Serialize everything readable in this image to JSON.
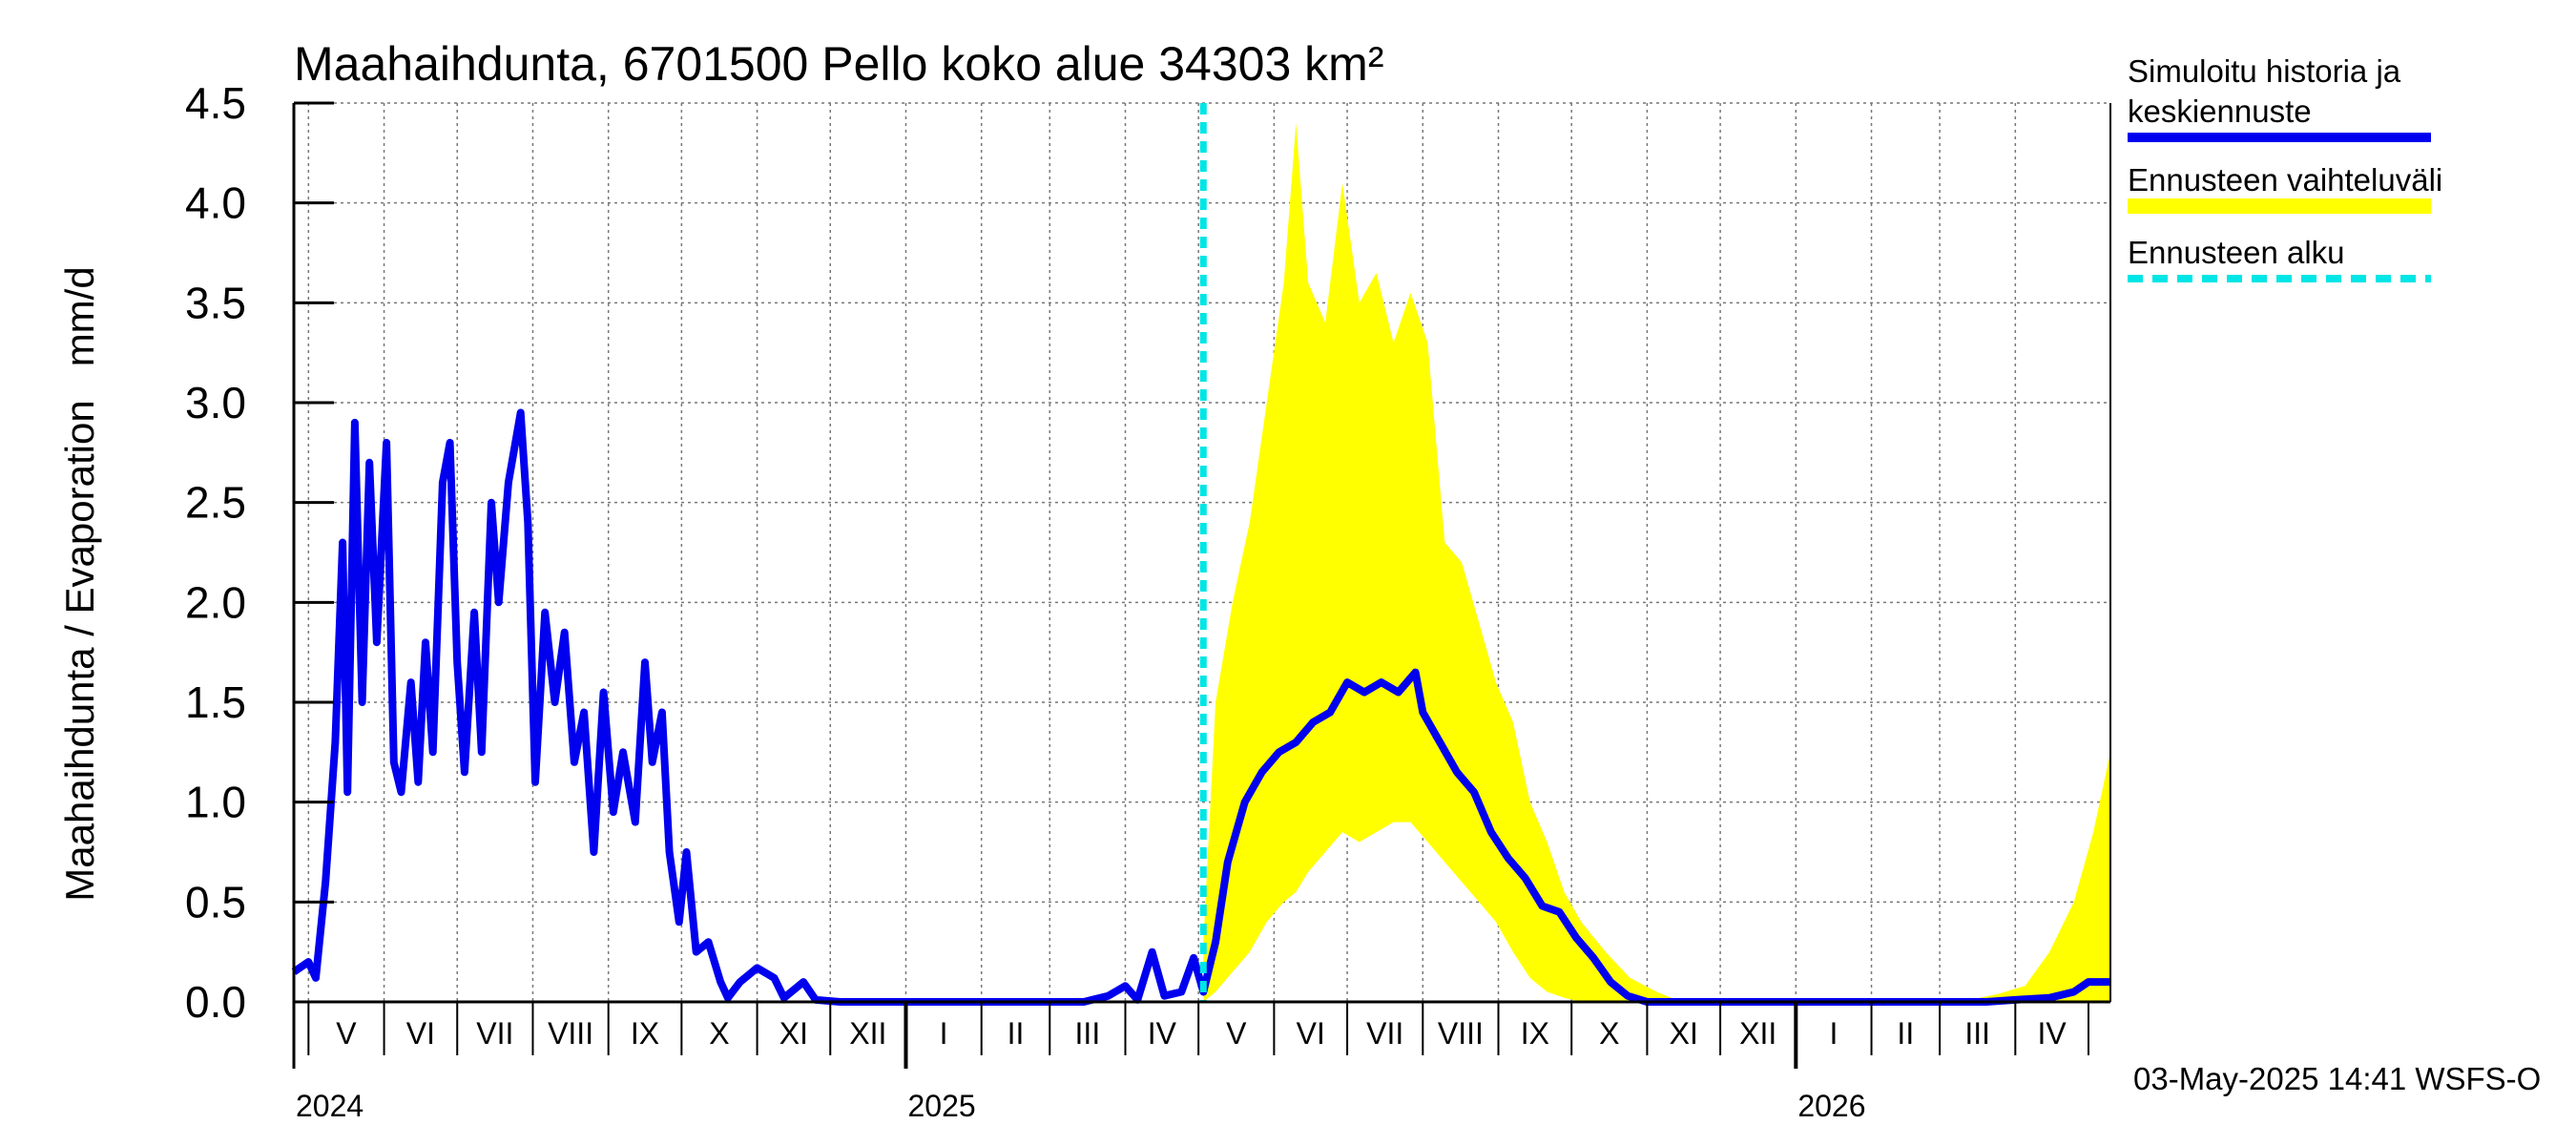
{
  "chart_data": {
    "type": "area",
    "title": "Maahaihdunta, 6701500 Pello koko alue 34303 km²",
    "ylabel": "Maahaihdunta / Evaporation   mm/d",
    "xlabel": "",
    "ylim": [
      0,
      4.5
    ],
    "xlim": [
      "2024-04-25",
      "2026-05-10"
    ],
    "y_ticks": [
      "0.0",
      "0.5",
      "1.0",
      "1.5",
      "2.0",
      "2.5",
      "3.0",
      "3.5",
      "4.0",
      "4.5"
    ],
    "month_labels": [
      {
        "label": "V",
        "date": "2024-05-01"
      },
      {
        "label": "VI",
        "date": "2024-06-01"
      },
      {
        "label": "VII",
        "date": "2024-07-01"
      },
      {
        "label": "VIII",
        "date": "2024-08-01"
      },
      {
        "label": "IX",
        "date": "2024-09-01"
      },
      {
        "label": "X",
        "date": "2024-10-01"
      },
      {
        "label": "XI",
        "date": "2024-11-01"
      },
      {
        "label": "XII",
        "date": "2024-12-01"
      },
      {
        "label": "I",
        "date": "2025-01-01"
      },
      {
        "label": "II",
        "date": "2025-02-01"
      },
      {
        "label": "III",
        "date": "2025-03-01"
      },
      {
        "label": "IV",
        "date": "2025-04-01"
      },
      {
        "label": "V",
        "date": "2025-05-01"
      },
      {
        "label": "VI",
        "date": "2025-06-01"
      },
      {
        "label": "VII",
        "date": "2025-07-01"
      },
      {
        "label": "VIII",
        "date": "2025-08-01"
      },
      {
        "label": "IX",
        "date": "2025-09-01"
      },
      {
        "label": "X",
        "date": "2025-10-01"
      },
      {
        "label": "XI",
        "date": "2025-11-01"
      },
      {
        "label": "XII",
        "date": "2025-12-01"
      },
      {
        "label": "I",
        "date": "2026-01-01"
      },
      {
        "label": "II",
        "date": "2026-02-01"
      },
      {
        "label": "III",
        "date": "2026-03-01"
      },
      {
        "label": "IV",
        "date": "2026-04-01"
      }
    ],
    "year_labels": [
      {
        "label": "2024",
        "date": "2024-04-25"
      },
      {
        "label": "2025",
        "date": "2025-01-01"
      },
      {
        "label": "2026",
        "date": "2026-01-01"
      }
    ],
    "forecast_start": "2025-05-03",
    "grid": true,
    "legend_position": "right",
    "legend": [
      {
        "label": "Simuloitu historia ja keskiennuste",
        "color": "#0000ee",
        "style": "solid"
      },
      {
        "label": "Ennusteen vaihteluväli",
        "color": "#ffff00",
        "style": "solid"
      },
      {
        "label": "Ennusteen alku",
        "color": "#00e5e5",
        "style": "dashed"
      }
    ],
    "series": [
      {
        "name": "Simuloitu historia ja keskiennuste",
        "color": "#0000ee",
        "points": [
          [
            "2024-04-25",
            0.15
          ],
          [
            "2024-05-01",
            0.2
          ],
          [
            "2024-05-04",
            0.12
          ],
          [
            "2024-05-08",
            0.6
          ],
          [
            "2024-05-12",
            1.3
          ],
          [
            "2024-05-15",
            2.3
          ],
          [
            "2024-05-17",
            1.05
          ],
          [
            "2024-05-20",
            2.9
          ],
          [
            "2024-05-23",
            1.5
          ],
          [
            "2024-05-26",
            2.7
          ],
          [
            "2024-05-29",
            1.8
          ],
          [
            "2024-06-02",
            2.8
          ],
          [
            "2024-06-05",
            1.2
          ],
          [
            "2024-06-08",
            1.05
          ],
          [
            "2024-06-12",
            1.6
          ],
          [
            "2024-06-15",
            1.1
          ],
          [
            "2024-06-18",
            1.8
          ],
          [
            "2024-06-21",
            1.25
          ],
          [
            "2024-06-25",
            2.6
          ],
          [
            "2024-06-28",
            2.8
          ],
          [
            "2024-07-01",
            1.7
          ],
          [
            "2024-07-04",
            1.15
          ],
          [
            "2024-07-08",
            1.95
          ],
          [
            "2024-07-11",
            1.25
          ],
          [
            "2024-07-15",
            2.5
          ],
          [
            "2024-07-18",
            2.0
          ],
          [
            "2024-07-22",
            2.6
          ],
          [
            "2024-07-27",
            2.95
          ],
          [
            "2024-07-30",
            2.4
          ],
          [
            "2024-08-02",
            1.1
          ],
          [
            "2024-08-06",
            1.95
          ],
          [
            "2024-08-10",
            1.5
          ],
          [
            "2024-08-14",
            1.85
          ],
          [
            "2024-08-18",
            1.2
          ],
          [
            "2024-08-22",
            1.45
          ],
          [
            "2024-08-26",
            0.75
          ],
          [
            "2024-08-30",
            1.55
          ],
          [
            "2024-09-03",
            0.95
          ],
          [
            "2024-09-07",
            1.25
          ],
          [
            "2024-09-12",
            0.9
          ],
          [
            "2024-09-16",
            1.7
          ],
          [
            "2024-09-19",
            1.2
          ],
          [
            "2024-09-23",
            1.45
          ],
          [
            "2024-09-26",
            0.75
          ],
          [
            "2024-09-30",
            0.4
          ],
          [
            "2024-10-03",
            0.75
          ],
          [
            "2024-10-07",
            0.25
          ],
          [
            "2024-10-12",
            0.3
          ],
          [
            "2024-10-17",
            0.1
          ],
          [
            "2024-10-20",
            0.02
          ],
          [
            "2024-10-25",
            0.1
          ],
          [
            "2024-11-01",
            0.17
          ],
          [
            "2024-11-08",
            0.12
          ],
          [
            "2024-11-12",
            0.02
          ],
          [
            "2024-11-20",
            0.1
          ],
          [
            "2024-11-25",
            0.01
          ],
          [
            "2024-12-05",
            0.0
          ],
          [
            "2025-03-15",
            0.0
          ],
          [
            "2025-03-25",
            0.03
          ],
          [
            "2025-04-01",
            0.08
          ],
          [
            "2025-04-06",
            0.01
          ],
          [
            "2025-04-12",
            0.25
          ],
          [
            "2025-04-17",
            0.03
          ],
          [
            "2025-04-24",
            0.05
          ],
          [
            "2025-04-29",
            0.22
          ],
          [
            "2025-05-03",
            0.05
          ],
          [
            "2025-05-08",
            0.3
          ],
          [
            "2025-05-13",
            0.7
          ],
          [
            "2025-05-20",
            1.0
          ],
          [
            "2025-05-27",
            1.15
          ],
          [
            "2025-06-03",
            1.25
          ],
          [
            "2025-06-10",
            1.3
          ],
          [
            "2025-06-17",
            1.4
          ],
          [
            "2025-06-24",
            1.45
          ],
          [
            "2025-07-01",
            1.6
          ],
          [
            "2025-07-08",
            1.55
          ],
          [
            "2025-07-15",
            1.6
          ],
          [
            "2025-07-22",
            1.55
          ],
          [
            "2025-07-29",
            1.65
          ],
          [
            "2025-08-01",
            1.45
          ],
          [
            "2025-08-08",
            1.3
          ],
          [
            "2025-08-15",
            1.15
          ],
          [
            "2025-08-22",
            1.05
          ],
          [
            "2025-08-29",
            0.85
          ],
          [
            "2025-09-05",
            0.72
          ],
          [
            "2025-09-12",
            0.62
          ],
          [
            "2025-09-19",
            0.48
          ],
          [
            "2025-09-26",
            0.45
          ],
          [
            "2025-10-03",
            0.32
          ],
          [
            "2025-10-10",
            0.22
          ],
          [
            "2025-10-17",
            0.1
          ],
          [
            "2025-10-24",
            0.03
          ],
          [
            "2025-11-01",
            0.0
          ],
          [
            "2026-03-20",
            0.0
          ],
          [
            "2026-04-01",
            0.01
          ],
          [
            "2026-04-15",
            0.02
          ],
          [
            "2026-04-25",
            0.05
          ],
          [
            "2026-05-01",
            0.1
          ],
          [
            "2026-05-10",
            0.1
          ]
        ]
      },
      {
        "name": "Ennusteen vaihteluväli",
        "color": "#ffff00",
        "band": [
          [
            "2025-05-03",
            0.0,
            0.3
          ],
          [
            "2025-05-08",
            0.05,
            1.5
          ],
          [
            "2025-05-15",
            0.15,
            2.0
          ],
          [
            "2025-05-22",
            0.25,
            2.4
          ],
          [
            "2025-05-29",
            0.4,
            3.0
          ],
          [
            "2025-06-05",
            0.5,
            3.6
          ],
          [
            "2025-06-10",
            0.55,
            4.4
          ],
          [
            "2025-06-15",
            0.65,
            3.6
          ],
          [
            "2025-06-22",
            0.75,
            3.4
          ],
          [
            "2025-06-29",
            0.85,
            4.1
          ],
          [
            "2025-07-06",
            0.8,
            3.5
          ],
          [
            "2025-07-13",
            0.85,
            3.65
          ],
          [
            "2025-07-20",
            0.9,
            3.3
          ],
          [
            "2025-07-27",
            0.9,
            3.55
          ],
          [
            "2025-08-03",
            0.8,
            3.3
          ],
          [
            "2025-08-10",
            0.7,
            2.3
          ],
          [
            "2025-08-17",
            0.6,
            2.2
          ],
          [
            "2025-08-24",
            0.5,
            1.9
          ],
          [
            "2025-08-31",
            0.4,
            1.6
          ],
          [
            "2025-09-07",
            0.25,
            1.4
          ],
          [
            "2025-09-14",
            0.12,
            1.0
          ],
          [
            "2025-09-21",
            0.05,
            0.8
          ],
          [
            "2025-09-28",
            0.02,
            0.55
          ],
          [
            "2025-10-05",
            0.0,
            0.4
          ],
          [
            "2025-10-15",
            0.0,
            0.25
          ],
          [
            "2025-10-25",
            0.0,
            0.12
          ],
          [
            "2025-11-05",
            0.0,
            0.05
          ],
          [
            "2025-11-15",
            0.0,
            0.0
          ],
          [
            "2026-03-10",
            0.0,
            0.0
          ],
          [
            "2026-03-25",
            0.0,
            0.04
          ],
          [
            "2026-04-05",
            0.0,
            0.08
          ],
          [
            "2026-04-15",
            0.0,
            0.25
          ],
          [
            "2026-04-25",
            0.0,
            0.5
          ],
          [
            "2026-05-03",
            0.0,
            0.85
          ],
          [
            "2026-05-10",
            0.0,
            1.25
          ]
        ]
      }
    ]
  },
  "footer": {
    "timestamp": "03-May-2025 14:41 WSFS-O"
  }
}
